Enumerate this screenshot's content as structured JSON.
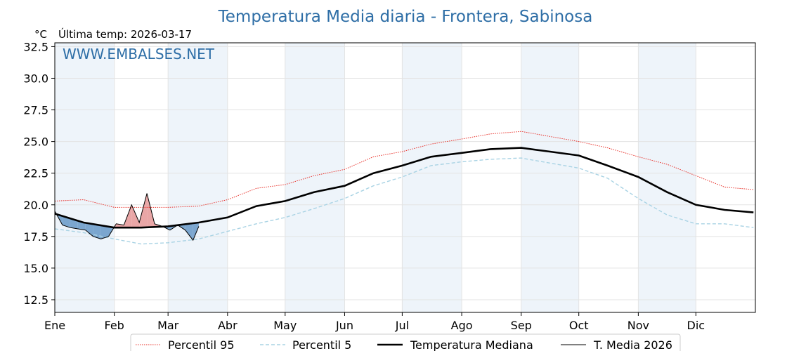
{
  "chart_data": {
    "type": "line",
    "title": "Temperatura Media diaria - Frontera, Sabinosa",
    "unit_label": "°C",
    "last_update": "Última temp: 2026-03-17",
    "watermark": "WWW.EMBALSES.NET",
    "ylim": [
      11.5,
      32.8
    ],
    "yticks": [
      "12.5",
      "15.0",
      "17.5",
      "20.0",
      "22.5",
      "25.0",
      "27.5",
      "30.0",
      "32.5"
    ],
    "month_labels": [
      "Ene",
      "Feb",
      "Mar",
      "Abr",
      "May",
      "Jun",
      "Jul",
      "Ago",
      "Sep",
      "Oct",
      "Nov",
      "Dic"
    ],
    "month_start_days": [
      0,
      31,
      59,
      90,
      120,
      151,
      181,
      212,
      243,
      273,
      304,
      334
    ],
    "days_in_year": 365,
    "grid": true,
    "legend_position": "bottom",
    "colors": {
      "p95": "#e8312a",
      "p5": "#a9d3e4",
      "median": "#000000",
      "current": "#000000",
      "above_fill": "#e9a6a6",
      "below_fill": "#7ba6cf",
      "band": "#eef4fa",
      "title": "#2e6ea6"
    },
    "series": [
      {
        "name": "Percentil 95",
        "style": "dotted",
        "x": [
          0,
          15,
          31,
          45,
          59,
          75,
          90,
          105,
          120,
          135,
          151,
          166,
          181,
          196,
          212,
          227,
          243,
          258,
          273,
          288,
          304,
          319,
          334,
          349,
          364
        ],
        "values": [
          20.3,
          20.4,
          19.8,
          19.8,
          19.8,
          19.9,
          20.4,
          21.3,
          21.6,
          22.3,
          22.8,
          23.8,
          24.2,
          24.8,
          25.2,
          25.6,
          25.8,
          25.4,
          25.0,
          24.5,
          23.8,
          23.2,
          22.3,
          21.4,
          21.2
        ]
      },
      {
        "name": "Percentil 5",
        "style": "dashed",
        "x": [
          0,
          15,
          31,
          45,
          59,
          75,
          90,
          105,
          120,
          135,
          151,
          166,
          181,
          196,
          212,
          227,
          243,
          258,
          273,
          288,
          304,
          319,
          334,
          349,
          364
        ],
        "values": [
          18.1,
          17.8,
          17.3,
          16.9,
          17.0,
          17.3,
          17.9,
          18.5,
          19.0,
          19.7,
          20.5,
          21.5,
          22.2,
          23.1,
          23.4,
          23.6,
          23.7,
          23.3,
          22.9,
          22.1,
          20.5,
          19.2,
          18.5,
          18.5,
          18.2
        ]
      },
      {
        "name": "Temperatura Mediana",
        "style": "solid-thick",
        "x": [
          0,
          15,
          31,
          45,
          59,
          75,
          90,
          105,
          120,
          135,
          151,
          166,
          181,
          196,
          212,
          227,
          243,
          258,
          273,
          288,
          304,
          319,
          334,
          349,
          364
        ],
        "values": [
          19.3,
          18.6,
          18.2,
          18.2,
          18.3,
          18.6,
          19.0,
          19.9,
          20.3,
          21.0,
          21.5,
          22.5,
          23.1,
          23.8,
          24.1,
          24.4,
          24.5,
          24.2,
          23.9,
          23.1,
          22.2,
          21.0,
          20.0,
          19.6,
          19.4
        ]
      },
      {
        "name": "T. Media 2026",
        "style": "solid-thin",
        "x": [
          0,
          4,
          8,
          12,
          16,
          20,
          24,
          28,
          32,
          36,
          40,
          44,
          48,
          52,
          56,
          60,
          64,
          68,
          72,
          75
        ],
        "values": [
          19.5,
          18.4,
          18.2,
          18.1,
          18.0,
          17.5,
          17.3,
          17.5,
          18.5,
          18.4,
          20.0,
          18.6,
          20.9,
          18.5,
          18.3,
          18.0,
          18.4,
          18.0,
          17.2,
          18.3
        ]
      }
    ]
  }
}
